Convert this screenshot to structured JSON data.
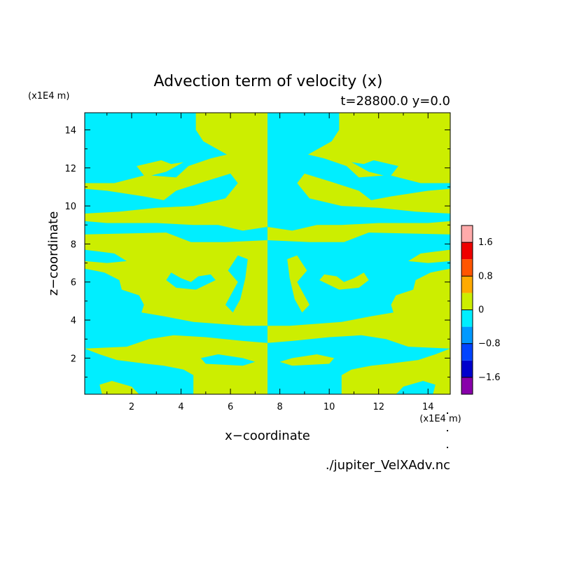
{
  "chart_data": {
    "type": "heatmap",
    "title": "Advection term of velocity (x)",
    "subtitle": "t=28800.0 y=0.0",
    "xlabel": "x−coordinate",
    "ylabel": "z−coordinate",
    "x_unit": "(x1E4 m)",
    "y_unit": "(x1E4 m)",
    "source_label": "./jupiter_VelXAdv.nc",
    "xlim": [
      0.1,
      14.9
    ],
    "ylim": [
      0.1,
      14.9
    ],
    "x_ticks": [
      2,
      4,
      6,
      8,
      10,
      12,
      14
    ],
    "y_ticks": [
      2,
      4,
      6,
      8,
      10,
      12,
      14
    ],
    "colorbar": {
      "levels": [
        -2.0,
        -1.6,
        -1.2,
        -0.8,
        -0.4,
        0,
        0.4,
        0.8,
        1.2,
        1.6,
        2.0
      ],
      "colors": [
        "#8800aa",
        "#0000cc",
        "#0044ff",
        "#0099ff",
        "#00eeff",
        "#ccee00",
        "#ffaa00",
        "#ff5500",
        "#ee0000",
        "#ffaaaa"
      ],
      "tick_labels": [
        "−1.6",
        "−0.8",
        "0",
        "0.8",
        "1.6"
      ],
      "tick_values": [
        -1.6,
        -0.8,
        0,
        0.8,
        1.6
      ]
    },
    "field_description": "Pattern of negative (cyan, -0.4..0) and positive (yellow-green, 0..0.4) bands, mirror-symmetric about x=7.5 with sign inversion",
    "left_half_positive_regions": [
      [
        [
          4.6,
          14.9
        ],
        [
          7.5,
          14.9
        ],
        [
          7.5,
          8.9
        ],
        [
          6.5,
          8.7
        ],
        [
          5.5,
          9.0
        ],
        [
          4.5,
          9.0
        ],
        [
          3.0,
          9.1
        ],
        [
          1.0,
          9.1
        ],
        [
          0.1,
          9.2
        ],
        [
          0.1,
          9.6
        ],
        [
          1.5,
          9.7
        ],
        [
          3.0,
          9.9
        ],
        [
          4.5,
          10.0
        ],
        [
          5.8,
          10.4
        ],
        [
          6.3,
          11.2
        ],
        [
          6.0,
          11.7
        ],
        [
          5.0,
          11.3
        ],
        [
          3.8,
          10.8
        ],
        [
          3.3,
          10.3
        ],
        [
          2.5,
          10.5
        ],
        [
          1.0,
          10.8
        ],
        [
          0.1,
          10.9
        ],
        [
          0.1,
          11.2
        ],
        [
          1.3,
          11.2
        ],
        [
          2.5,
          11.6
        ],
        [
          2.2,
          12.1
        ],
        [
          3.2,
          12.4
        ],
        [
          3.6,
          12.2
        ],
        [
          4.1,
          12.3
        ],
        [
          3.4,
          11.8
        ],
        [
          2.8,
          11.6
        ],
        [
          3.8,
          11.5
        ],
        [
          4.3,
          12.1
        ],
        [
          5.2,
          12.5
        ],
        [
          6.5,
          12.9
        ],
        [
          6.8,
          12.8
        ],
        [
          4.9,
          12.2
        ],
        [
          6.0,
          12.6
        ],
        [
          4.9,
          13.4
        ],
        [
          4.6,
          14.0
        ]
      ],
      [
        [
          0.1,
          8.5
        ],
        [
          3.4,
          8.6
        ],
        [
          4.4,
          8.1
        ],
        [
          5.8,
          8.1
        ],
        [
          7.5,
          8.2
        ],
        [
          7.5,
          3.7
        ],
        [
          6.6,
          3.7
        ],
        [
          4.5,
          3.9
        ],
        [
          3.3,
          4.2
        ],
        [
          2.4,
          4.4
        ],
        [
          2.5,
          4.8
        ],
        [
          2.3,
          5.3
        ],
        [
          1.6,
          5.6
        ],
        [
          1.5,
          6.1
        ],
        [
          0.9,
          6.5
        ],
        [
          0.5,
          6.6
        ],
        [
          0.1,
          6.7
        ],
        [
          0.1,
          7.1
        ],
        [
          1.0,
          7.0
        ],
        [
          1.8,
          7.1
        ],
        [
          1.3,
          7.5
        ],
        [
          0.7,
          7.6
        ],
        [
          0.1,
          7.7
        ]
      ],
      [
        [
          0.1,
          2.5
        ],
        [
          1.8,
          2.6
        ],
        [
          2.7,
          3.0
        ],
        [
          3.7,
          3.2
        ],
        [
          5.0,
          3.1
        ],
        [
          6.5,
          2.9
        ],
        [
          7.5,
          2.8
        ],
        [
          7.5,
          0.1
        ],
        [
          4.5,
          0.1
        ],
        [
          4.5,
          1.1
        ],
        [
          4.1,
          1.4
        ],
        [
          3.3,
          1.6
        ],
        [
          2.6,
          1.7
        ],
        [
          1.4,
          1.9
        ],
        [
          0.7,
          2.2
        ]
      ],
      [
        [
          0.8,
          0.1
        ],
        [
          2.3,
          0.1
        ],
        [
          2.0,
          0.5
        ],
        [
          1.2,
          0.8
        ],
        [
          0.7,
          0.6
        ]
      ]
    ],
    "left_half_negative_islands": [
      [
        [
          3.6,
          6.5
        ],
        [
          4.0,
          6.2
        ],
        [
          4.4,
          6.0
        ],
        [
          4.7,
          6.3
        ],
        [
          5.2,
          6.4
        ],
        [
          5.4,
          6.1
        ],
        [
          4.6,
          5.6
        ],
        [
          3.8,
          5.7
        ],
        [
          3.4,
          6.1
        ]
      ],
      [
        [
          5.8,
          4.8
        ],
        [
          6.3,
          6.0
        ],
        [
          5.9,
          6.6
        ],
        [
          6.3,
          7.4
        ],
        [
          6.7,
          7.2
        ],
        [
          6.6,
          6.2
        ],
        [
          6.4,
          5.1
        ],
        [
          6.1,
          4.4
        ]
      ],
      [
        [
          5.5,
          2.2
        ],
        [
          6.5,
          2.0
        ],
        [
          7.0,
          1.8
        ],
        [
          6.5,
          1.6
        ],
        [
          5.0,
          1.7
        ],
        [
          4.8,
          2.0
        ]
      ]
    ]
  }
}
